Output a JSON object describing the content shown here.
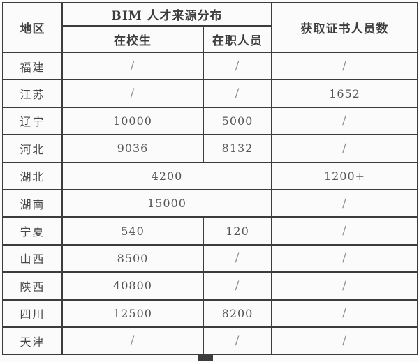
{
  "table": {
    "header": {
      "region": "地区",
      "source_group": "BIM 人才来源分布",
      "students": "在校生",
      "employees": "在职人员",
      "certified": "获取证书人员数"
    },
    "rows": [
      {
        "region": "福建",
        "students": "/",
        "employees": "/",
        "certified": "/"
      },
      {
        "region": "江苏",
        "students": "/",
        "employees": "/",
        "certified": "1652"
      },
      {
        "region": "辽宁",
        "students": "10000",
        "employees": "5000",
        "certified": "/"
      },
      {
        "region": "河北",
        "students": "9036",
        "employees": "8132",
        "certified": "/"
      },
      {
        "region": "湖北",
        "source": "4200",
        "certified": "1200+"
      },
      {
        "region": "湖南",
        "source": "15000",
        "certified": "/"
      },
      {
        "region": "宁夏",
        "students": "540",
        "employees": "120",
        "certified": "/"
      },
      {
        "region": "山西",
        "students": "8500",
        "employees": "/",
        "certified": "/"
      },
      {
        "region": "陕西",
        "students": "40800",
        "employees": "/",
        "certified": "/"
      },
      {
        "region": "四川",
        "students": "12500",
        "employees": "8200",
        "certified": "/"
      },
      {
        "region": "天津",
        "students": "/",
        "employees": "/",
        "certified": "/"
      }
    ]
  }
}
